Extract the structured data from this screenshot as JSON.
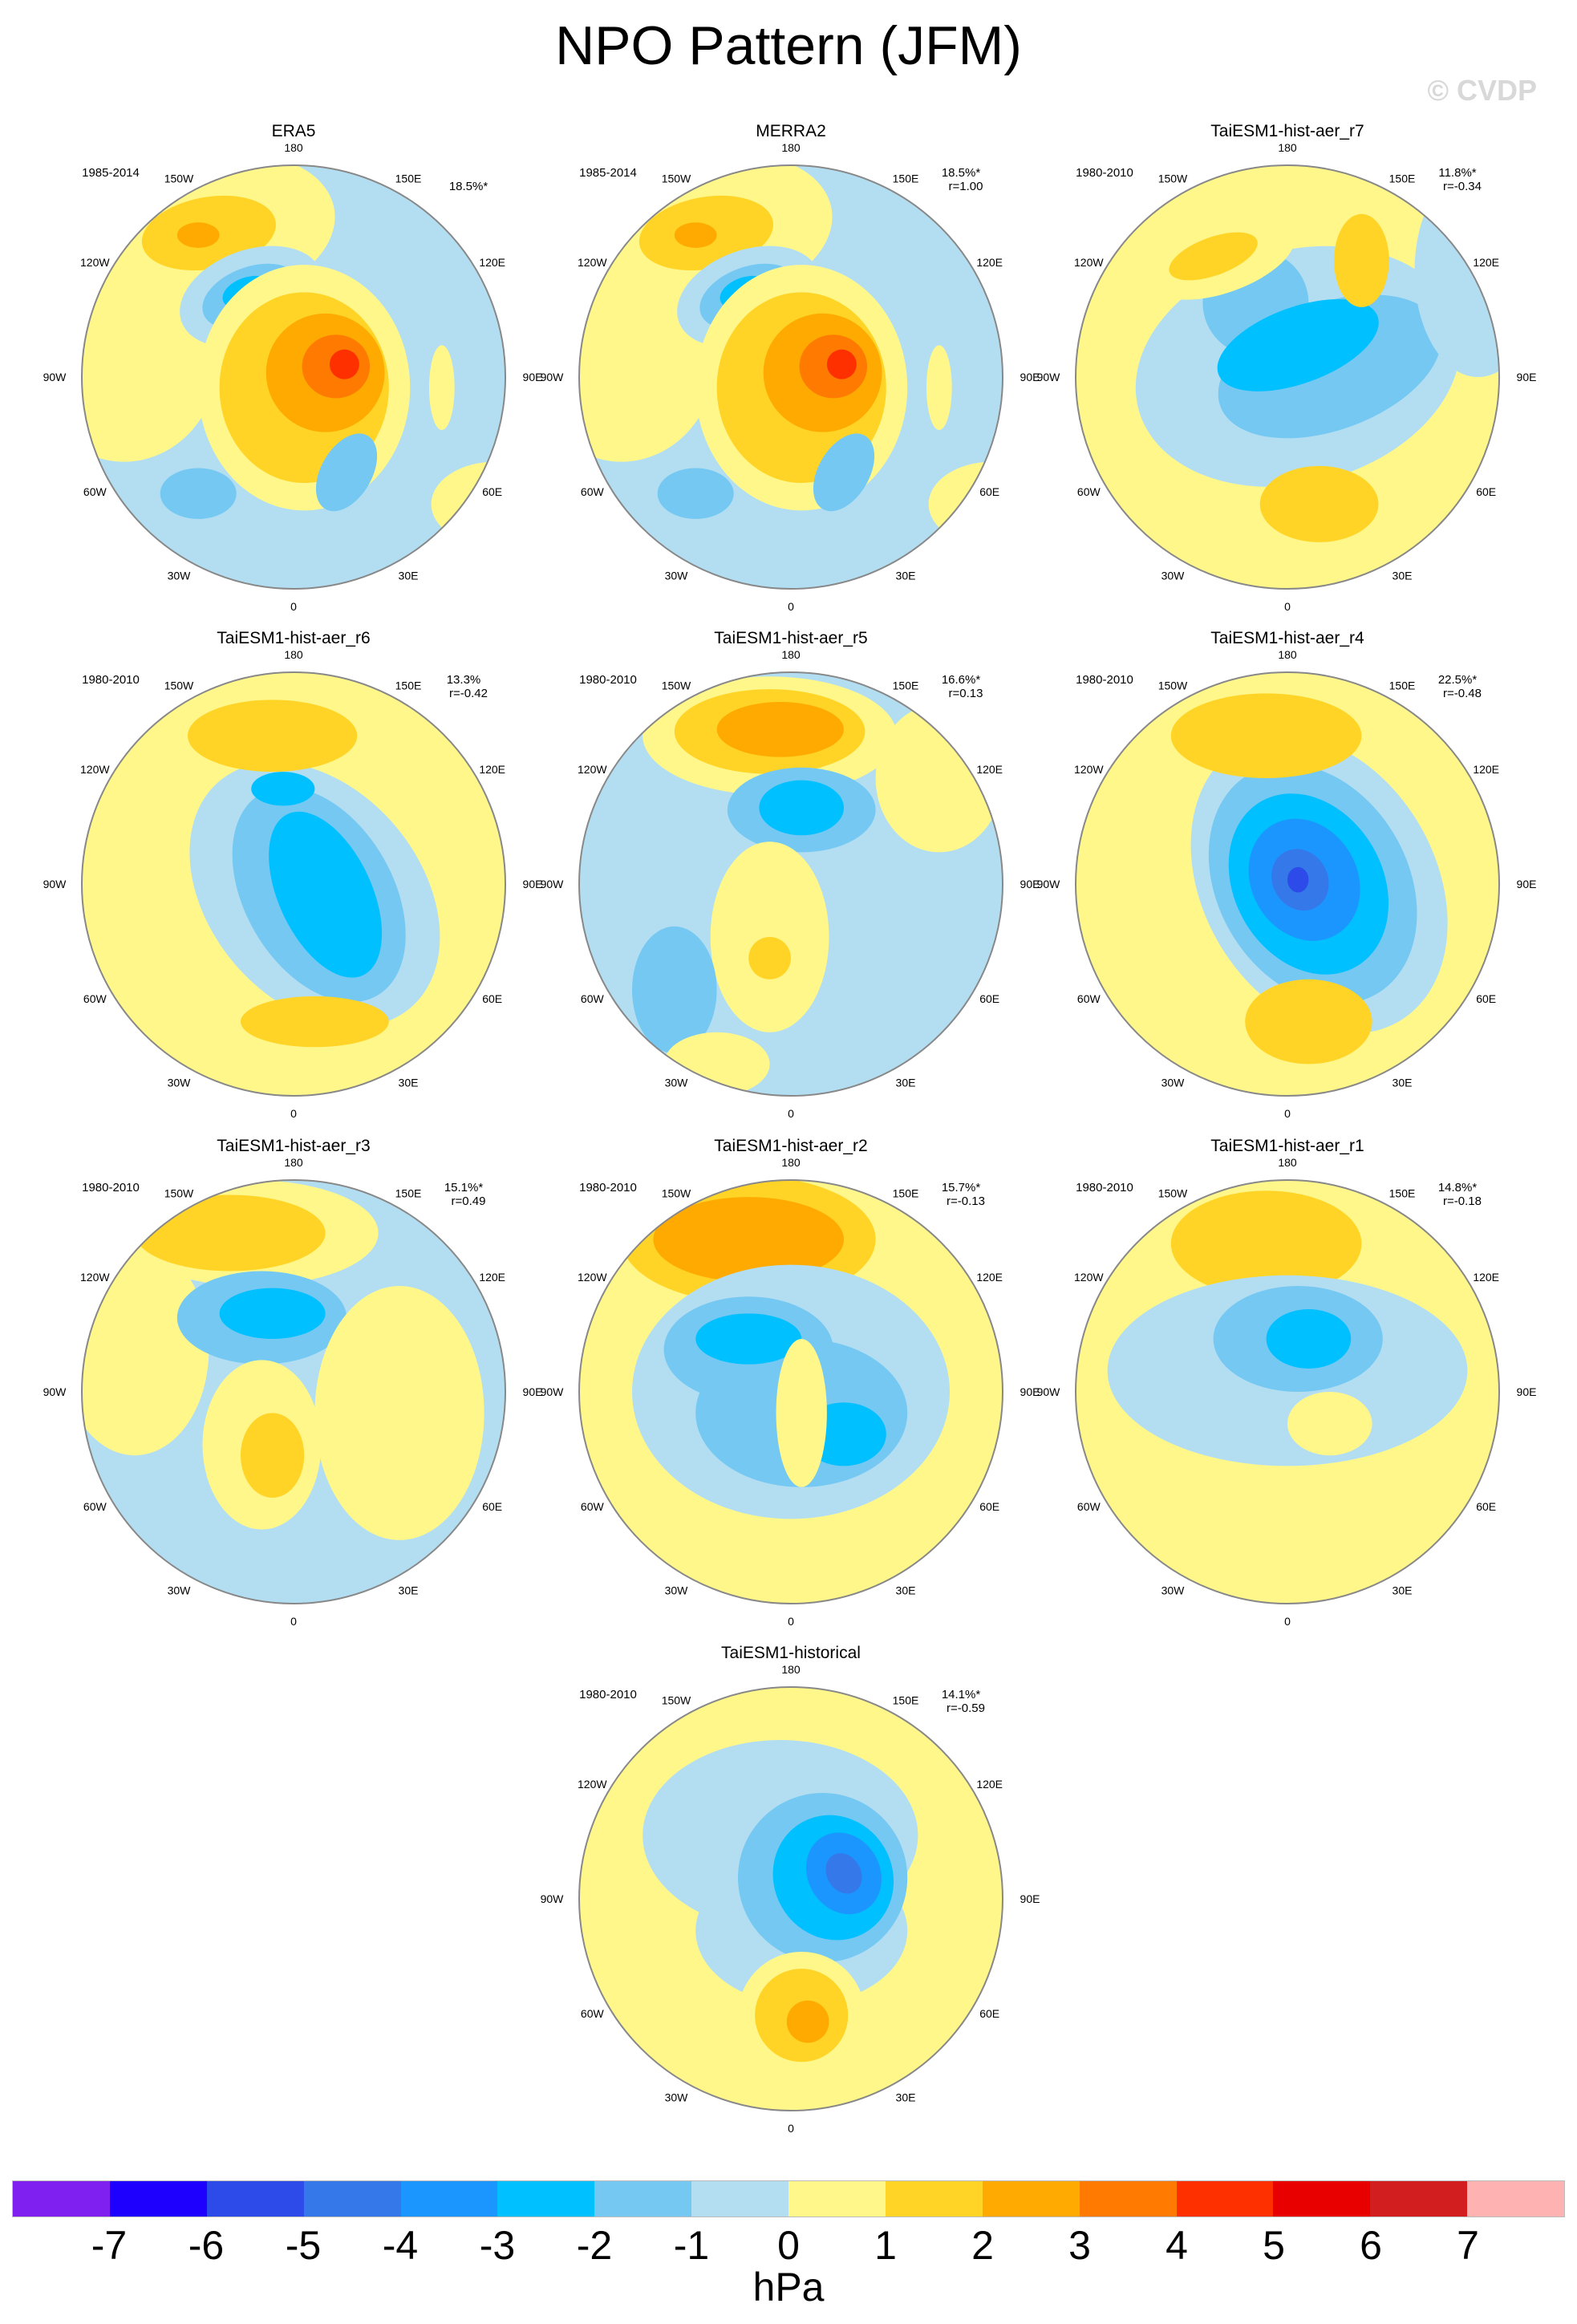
{
  "title": "NPO Pattern (JFM)",
  "watermark": "© CVDP",
  "lon_labels": [
    "180",
    "150E",
    "120E",
    "90E",
    "60E",
    "30E",
    "0",
    "30W",
    "60W",
    "90W",
    "120W",
    "150W"
  ],
  "chart_data": {
    "type": "heatmap",
    "description_units": "hPa",
    "colorbar": {
      "unit": "hPa",
      "ticks": [
        "-7",
        "-6",
        "-5",
        "-4",
        "-3",
        "-2",
        "-1",
        "0",
        "1",
        "2",
        "3",
        "4",
        "5",
        "6",
        "7"
      ],
      "colors": [
        "#8020f0",
        "#1e00ff",
        "#2d4be8",
        "#3478ea",
        "#1c96ff",
        "#00c0ff",
        "#74c8f2",
        "#b3def2",
        "#fff78a",
        "#ffd427",
        "#ffaa00",
        "#ff7a00",
        "#ff3000",
        "#e80000",
        "#d21e1e",
        "#ffb2b2"
      ]
    },
    "panels": [
      {
        "title": "ERA5",
        "period": "1985-2014",
        "pct": "18.5%*",
        "r": ""
      },
      {
        "title": "MERRA2",
        "period": "1985-2014",
        "pct": "18.5%*",
        "r": "r=1.00"
      },
      {
        "title": "TaiESM1-hist-aer_r7",
        "period": "1980-2010",
        "pct": "11.8%*",
        "r": "r=-0.34"
      },
      {
        "title": "TaiESM1-hist-aer_r6",
        "period": "1980-2010",
        "pct": "13.3%",
        "r": "r=-0.42"
      },
      {
        "title": "TaiESM1-hist-aer_r5",
        "period": "1980-2010",
        "pct": "16.6%*",
        "r": "r=0.13"
      },
      {
        "title": "TaiESM1-hist-aer_r4",
        "period": "1980-2010",
        "pct": "22.5%*",
        "r": "r=-0.48"
      },
      {
        "title": "TaiESM1-hist-aer_r3",
        "period": "1980-2010",
        "pct": "15.1%*",
        "r": "r=0.49"
      },
      {
        "title": "TaiESM1-hist-aer_r2",
        "period": "1980-2010",
        "pct": "15.7%*",
        "r": "r=-0.13"
      },
      {
        "title": "TaiESM1-hist-aer_r1",
        "period": "1980-2010",
        "pct": "14.8%*",
        "r": "r=-0.18"
      },
      {
        "title": "TaiESM1-historical",
        "period": "1980-2010",
        "pct": "14.1%*",
        "r": "r=-0.59"
      }
    ]
  }
}
